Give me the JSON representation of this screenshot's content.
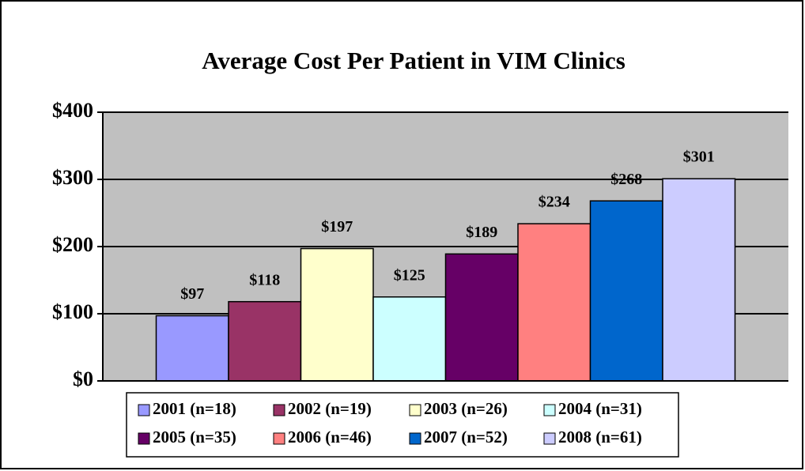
{
  "chart_data": {
    "type": "bar",
    "title": "Average Cost Per Patient in VIM Clinics",
    "series": [
      {
        "name": "2001 (n=18)",
        "color": "#9999ff",
        "values": [
          97
        ],
        "value_labels": [
          "$97"
        ]
      },
      {
        "name": "2002 (n=19)",
        "color": "#993366",
        "values": [
          118
        ],
        "value_labels": [
          "$118"
        ]
      },
      {
        "name": "2003 (n=26)",
        "color": "#ffffcc",
        "values": [
          197
        ],
        "value_labels": [
          "$197"
        ]
      },
      {
        "name": "2004 (n=31)",
        "color": "#ccffff",
        "values": [
          125
        ],
        "value_labels": [
          "$125"
        ]
      },
      {
        "name": "2005 (n=35)",
        "color": "#660066",
        "values": [
          189
        ],
        "value_labels": [
          "$189"
        ]
      },
      {
        "name": "2006 (n=46)",
        "color": "#ff8080",
        "values": [
          234
        ],
        "value_labels": [
          "$234"
        ]
      },
      {
        "name": "2007 (n=52)",
        "color": "#0066cc",
        "values": [
          268
        ],
        "value_labels": [
          "$268"
        ]
      },
      {
        "name": "2008 (n=61)",
        "color": "#ccccff",
        "values": [
          301
        ],
        "value_labels": [
          "$301"
        ]
      }
    ],
    "ylim": [
      0,
      400
    ],
    "yticks": [
      {
        "value": 0,
        "label": "$0"
      },
      {
        "value": 100,
        "label": "$100"
      },
      {
        "value": 200,
        "label": "$200"
      },
      {
        "value": 300,
        "label": "$300"
      },
      {
        "value": 400,
        "label": "$400"
      }
    ],
    "grid": true,
    "legend": "bottom"
  }
}
